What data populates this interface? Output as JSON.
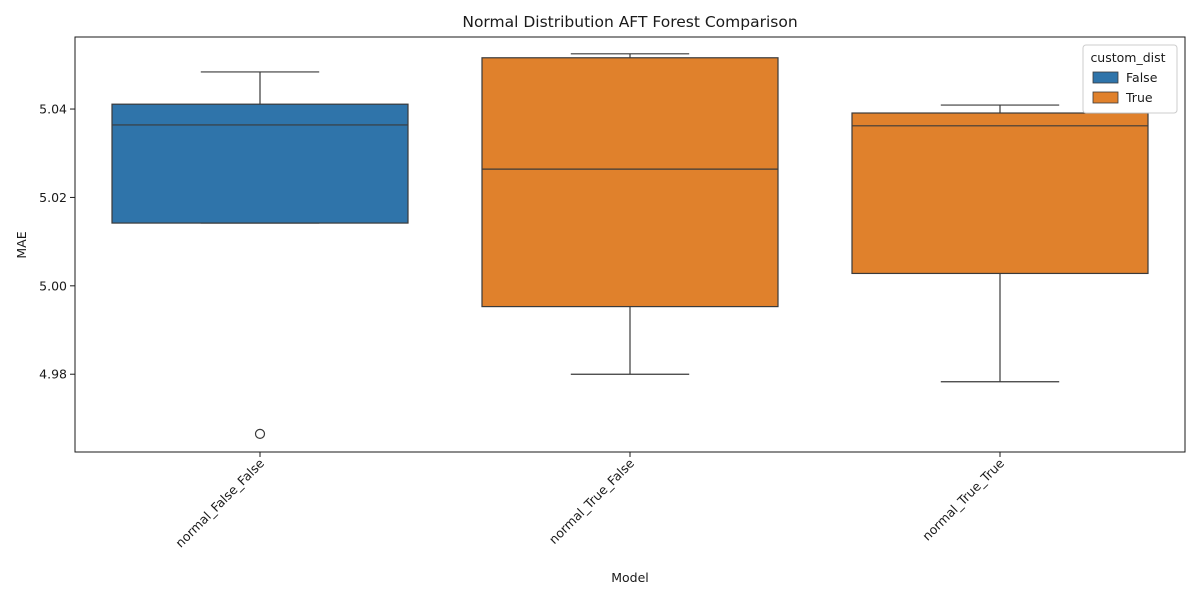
{
  "chart_data": {
    "type": "box",
    "title": "Normal Distribution AFT Forest Comparison",
    "xlabel": "Model",
    "ylabel": "MAE",
    "ylim": [
      4.9624,
      5.0563
    ],
    "yticks": [
      4.98,
      5.0,
      5.02,
      5.04
    ],
    "ytick_labels": [
      "4.98",
      "5.00",
      "5.02",
      "5.04"
    ],
    "categories": [
      "normal_False_False",
      "normal_True_False",
      "normal_True_True"
    ],
    "boxes": [
      {
        "category": "normal_False_False",
        "group": "False",
        "whisker_low": 5.0142,
        "q1": 5.0142,
        "median": 5.0364,
        "q3": 5.0411,
        "whisker_high": 5.0484,
        "outliers": [
          4.9665
        ]
      },
      {
        "category": "normal_True_False",
        "group": "True",
        "whisker_low": 4.98,
        "q1": 4.9953,
        "median": 5.0264,
        "q3": 5.0516,
        "whisker_high": 5.0525,
        "outliers": []
      },
      {
        "category": "normal_True_True",
        "group": "True",
        "whisker_low": 4.9783,
        "q1": 5.0028,
        "median": 5.0362,
        "q3": 5.0391,
        "whisker_high": 5.0409,
        "outliers": []
      }
    ],
    "legend": {
      "title": "custom_dist",
      "position": "top-right",
      "entries": [
        {
          "label": "False",
          "color": "#2f74aa"
        },
        {
          "label": "True",
          "color": "#e0812c"
        }
      ]
    },
    "grid": false
  }
}
